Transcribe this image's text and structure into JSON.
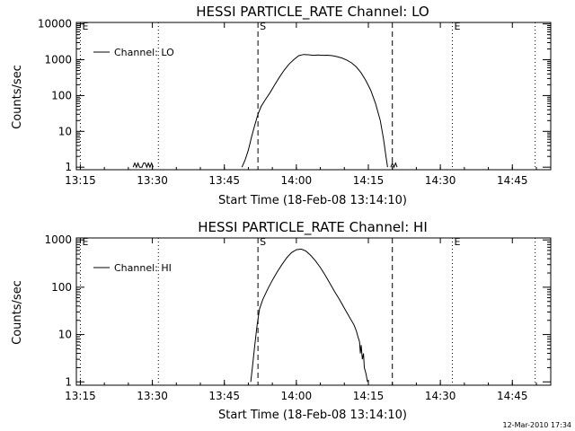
{
  "chart_data": [
    {
      "type": "line",
      "title": "HESSI PARTICLE_RATE Channel: LO",
      "xlabel": "Start Time (18-Feb-08 13:14:10)",
      "ylabel": "Counts/sec",
      "log_y": true,
      "ylim": [
        0.85,
        11000
      ],
      "xlim": [
        "13:14:10",
        "14:53:00"
      ],
      "x_ticks": [
        "13:15",
        "13:30",
        "13:45",
        "14:00",
        "14:15",
        "14:30",
        "14:45"
      ],
      "y_ticks": [
        "1",
        "10",
        "100",
        "1000",
        "10000"
      ],
      "legend": {
        "position": "top-left",
        "entries": [
          "Channel: LO"
        ]
      },
      "markers": [
        {
          "label": "E",
          "time": "13:15:00",
          "style": "dotted"
        },
        {
          "label": "",
          "time": "13:31:15",
          "style": "dotted"
        },
        {
          "label": "S",
          "time": "13:52:00",
          "style": "dashed"
        },
        {
          "label": "",
          "time": "14:20:00",
          "style": "dashed"
        },
        {
          "label": "E",
          "time": "14:32:30",
          "style": "dotted"
        },
        {
          "label": "",
          "time": "14:49:45",
          "style": "dotted"
        }
      ],
      "series": [
        {
          "name": "Channel: LO",
          "segments": [
            [
              [
                "13:26:00",
                1
              ],
              [
                "13:26:20",
                1.3
              ],
              [
                "13:26:40",
                1
              ],
              [
                "13:27:00",
                1.3
              ],
              [
                "13:27:20",
                1
              ],
              [
                "13:27:50",
                1
              ],
              [
                "13:28:10",
                1.3
              ],
              [
                "13:28:30",
                1.3
              ],
              [
                "13:28:50",
                1
              ],
              [
                "13:29:10",
                1.3
              ],
              [
                "13:29:30",
                1
              ],
              [
                "13:29:50",
                1.3
              ],
              [
                "13:30:10",
                1
              ]
            ],
            [
              [
                "13:48:40",
                1
              ],
              [
                "13:49:20",
                1.6
              ],
              [
                "13:50:00",
                3
              ],
              [
                "13:50:40",
                7
              ],
              [
                "13:51:20",
                15
              ],
              [
                "13:52:00",
                30
              ],
              [
                "13:52:40",
                50
              ],
              [
                "13:53:30",
                75
              ],
              [
                "13:54:30",
                120
              ],
              [
                "13:55:30",
                200
              ],
              [
                "13:56:30",
                330
              ],
              [
                "13:57:30",
                520
              ],
              [
                "13:58:30",
                760
              ],
              [
                "13:59:30",
                1020
              ],
              [
                "14:00:30",
                1300
              ],
              [
                "14:01:30",
                1400
              ],
              [
                "14:02:30",
                1380
              ],
              [
                "14:03:30",
                1330
              ],
              [
                "14:04:30",
                1350
              ],
              [
                "14:05:30",
                1330
              ],
              [
                "14:06:30",
                1340
              ],
              [
                "14:07:30",
                1300
              ],
              [
                "14:08:30",
                1220
              ],
              [
                "14:09:30",
                1120
              ],
              [
                "14:10:30",
                980
              ],
              [
                "14:11:30",
                820
              ],
              [
                "14:12:30",
                630
              ],
              [
                "14:13:30",
                430
              ],
              [
                "14:14:30",
                260
              ],
              [
                "14:15:30",
                140
              ],
              [
                "14:16:30",
                60
              ],
              [
                "14:17:30",
                20
              ],
              [
                "14:18:10",
                6
              ],
              [
                "14:18:40",
                2
              ],
              [
                "14:19:00",
                1
              ]
            ],
            [
              [
                "14:19:40",
                1
              ],
              [
                "14:20:00",
                1.3
              ],
              [
                "14:20:20",
                1
              ],
              [
                "14:20:40",
                1.3
              ],
              [
                "14:21:00",
                1
              ]
            ]
          ]
        }
      ]
    },
    {
      "type": "line",
      "title": "HESSI PARTICLE_RATE Channel: HI",
      "xlabel": "Start Time (18-Feb-08 13:14:10)",
      "ylabel": "Counts/sec",
      "log_y": true,
      "ylim": [
        0.85,
        1100
      ],
      "xlim": [
        "13:14:10",
        "14:53:00"
      ],
      "x_ticks": [
        "13:15",
        "13:30",
        "13:45",
        "14:00",
        "14:15",
        "14:30",
        "14:45"
      ],
      "y_ticks": [
        "1",
        "10",
        "100",
        "1000"
      ],
      "legend": {
        "position": "top-left",
        "entries": [
          "Channel: HI"
        ]
      },
      "markers": [
        {
          "label": "E",
          "time": "13:15:00",
          "style": "dotted"
        },
        {
          "label": "",
          "time": "13:31:15",
          "style": "dotted"
        },
        {
          "label": "S",
          "time": "13:52:00",
          "style": "dashed"
        },
        {
          "label": "",
          "time": "14:20:00",
          "style": "dashed"
        },
        {
          "label": "E",
          "time": "14:32:30",
          "style": "dotted"
        },
        {
          "label": "",
          "time": "14:49:45",
          "style": "dotted"
        }
      ],
      "series": [
        {
          "name": "Channel: HI",
          "segments": [
            [
              [
                "13:50:30",
                1
              ],
              [
                "13:50:50",
                2
              ],
              [
                "13:51:20",
                6
              ],
              [
                "13:51:50",
                16
              ],
              [
                "13:52:20",
                35
              ],
              [
                "13:53:00",
                55
              ],
              [
                "13:54:00",
                90
              ],
              [
                "13:55:00",
                140
              ],
              [
                "13:56:00",
                210
              ],
              [
                "13:57:00",
                300
              ],
              [
                "13:58:00",
                420
              ],
              [
                "13:59:00",
                540
              ],
              [
                "14:00:00",
                620
              ],
              [
                "14:01:00",
                640
              ],
              [
                "14:02:00",
                580
              ],
              [
                "14:03:00",
                470
              ],
              [
                "14:04:00",
                360
              ],
              [
                "14:05:00",
                260
              ],
              [
                "14:06:00",
                180
              ],
              [
                "14:07:00",
                120
              ],
              [
                "14:08:00",
                80
              ],
              [
                "14:09:00",
                55
              ],
              [
                "14:10:00",
                36
              ],
              [
                "14:11:00",
                24
              ],
              [
                "14:12:00",
                16
              ],
              [
                "14:12:30",
                12
              ],
              [
                "14:12:50",
                9
              ],
              [
                "14:13:10",
                7
              ],
              [
                "14:13:20",
                4
              ],
              [
                "14:13:30",
                6
              ],
              [
                "14:13:45",
                3
              ],
              [
                "14:14:00",
                4
              ],
              [
                "14:14:10",
                2
              ],
              [
                "14:14:30",
                1.5
              ],
              [
                "14:14:50",
                1
              ]
            ]
          ]
        }
      ]
    }
  ],
  "footer": {
    "timestamp": "12-Mar-2010 17:34"
  }
}
